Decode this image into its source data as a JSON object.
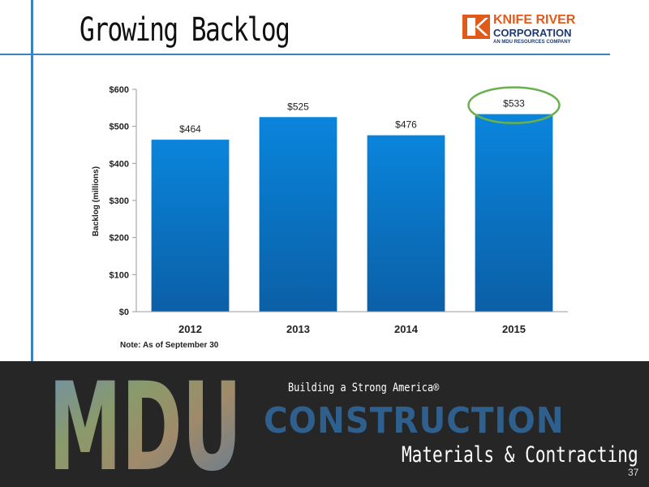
{
  "slide": {
    "title": "Growing Backlog",
    "note": "Note: As of September 30",
    "page_number": "37"
  },
  "logo": {
    "line1": "KNIFE RIVER",
    "line2": "CORPORATION",
    "line3": "AN MDU RESOURCES COMPANY",
    "accent_color": "#e05a1a",
    "navy_color": "#1f3a6e"
  },
  "footer": {
    "brand_letters": "MDU",
    "tagline": "Building a Strong America®",
    "headline": "CONSTRUCTION",
    "subheadline": "Materials & Contracting"
  },
  "chart_data": {
    "type": "bar",
    "title": "",
    "xlabel": "",
    "ylabel": "Backlog (millions)",
    "categories": [
      "2012",
      "2013",
      "2014",
      "2015"
    ],
    "values": [
      464,
      525,
      476,
      533
    ],
    "data_labels": [
      "$464",
      "$525",
      "$476",
      "$533"
    ],
    "ylim": [
      0,
      600
    ],
    "yticks": [
      0,
      100,
      200,
      300,
      400,
      500,
      600
    ],
    "ytick_labels": [
      "$0",
      "$100",
      "$200",
      "$300",
      "$400",
      "$500",
      "$600"
    ],
    "grid": false,
    "legend": "none",
    "bar_color_top": "#0a85dc",
    "bar_color_bottom": "#0b5fa6",
    "highlight_category": "2015",
    "highlight_color": "#6ab04c"
  }
}
